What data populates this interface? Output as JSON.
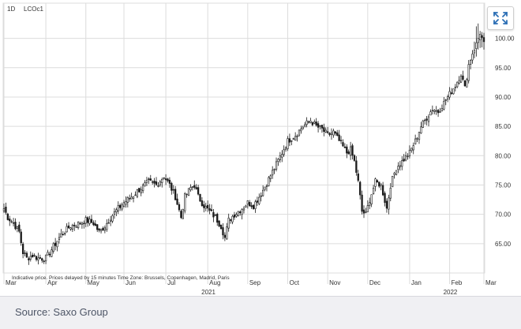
{
  "header": {
    "timeframe": "1D",
    "symbol": "LCOc1"
  },
  "note": "Indicative price. Prices delayed by 15 minutes   Time Zone: Brussels, Copenhagen, Madrid, Paris",
  "footer": {
    "source": "Source: Saxo Group"
  },
  "colors": {
    "candle": "#1a1a1a",
    "grid": "#dcdcdc",
    "accent": "#2c6fb5"
  },
  "icons": {
    "expand": "expand-arrows-icon"
  },
  "chart_data": {
    "type": "candlestick",
    "title": "",
    "xlabel": "",
    "ylabel": "",
    "ylim": [
      60,
      106
    ],
    "y_ticks": [
      65,
      70,
      75,
      80,
      85,
      90,
      95,
      100
    ],
    "y_tick_labels": [
      "65.00",
      "70.00",
      "75.00",
      "80.00",
      "85.00",
      "90.00",
      "95.00",
      "100.00"
    ],
    "x_ticks": [
      {
        "label": "Mar",
        "sub": "",
        "idx": 0
      },
      {
        "label": "Apr",
        "sub": "",
        "idx": 22
      },
      {
        "label": "May",
        "sub": "",
        "idx": 43
      },
      {
        "label": "Jun",
        "sub": "",
        "idx": 63
      },
      {
        "label": "Jul",
        "sub": "",
        "idx": 85
      },
      {
        "label": "Aug",
        "sub": "2021",
        "idx": 107
      },
      {
        "label": "Sep",
        "sub": "",
        "idx": 128
      },
      {
        "label": "Oct",
        "sub": "",
        "idx": 149
      },
      {
        "label": "Nov",
        "sub": "",
        "idx": 170
      },
      {
        "label": "Dec",
        "sub": "",
        "idx": 191
      },
      {
        "label": "Jan",
        "sub": "",
        "idx": 213
      },
      {
        "label": "Feb",
        "sub": "2022",
        "idx": 234
      },
      {
        "label": "Mar",
        "sub": "",
        "idx": 254
      }
    ],
    "anchors": [
      [
        0,
        71
      ],
      [
        2,
        69.5
      ],
      [
        5,
        68.5
      ],
      [
        8,
        67
      ],
      [
        10,
        63.5
      ],
      [
        12,
        62.5
      ],
      [
        15,
        63
      ],
      [
        18,
        62.5
      ],
      [
        22,
        62.5
      ],
      [
        25,
        64
      ],
      [
        28,
        65.5
      ],
      [
        30,
        66.5
      ],
      [
        35,
        68
      ],
      [
        40,
        68.5
      ],
      [
        43,
        69
      ],
      [
        47,
        68.5
      ],
      [
        50,
        67
      ],
      [
        53,
        68
      ],
      [
        56,
        69.5
      ],
      [
        60,
        71
      ],
      [
        63,
        72
      ],
      [
        67,
        73
      ],
      [
        72,
        74.5
      ],
      [
        76,
        75.5
      ],
      [
        80,
        75
      ],
      [
        84,
        76.5
      ],
      [
        87,
        75
      ],
      [
        90,
        73
      ],
      [
        93,
        69.5
      ],
      [
        95,
        73
      ],
      [
        98,
        74.5
      ],
      [
        100,
        75
      ],
      [
        102,
        73
      ],
      [
        105,
        71.5
      ],
      [
        108,
        70.5
      ],
      [
        111,
        69.5
      ],
      [
        114,
        68
      ],
      [
        116,
        66
      ],
      [
        118,
        69
      ],
      [
        121,
        70
      ],
      [
        125,
        71
      ],
      [
        128,
        72
      ],
      [
        131,
        71.5
      ],
      [
        135,
        73.5
      ],
      [
        139,
        76
      ],
      [
        143,
        78.5
      ],
      [
        146,
        80.5
      ],
      [
        149,
        82.5
      ],
      [
        153,
        83.5
      ],
      [
        157,
        85
      ],
      [
        161,
        86
      ],
      [
        164,
        85
      ],
      [
        167,
        84.5
      ],
      [
        170,
        83.5
      ],
      [
        173,
        84
      ],
      [
        176,
        82.5
      ],
      [
        180,
        80.5
      ],
      [
        182,
        81
      ],
      [
        184,
        79
      ],
      [
        186,
        75.5
      ],
      [
        188,
        70.5
      ],
      [
        190,
        70
      ],
      [
        192,
        72.5
      ],
      [
        195,
        75.5
      ],
      [
        198,
        75
      ],
      [
        201,
        71
      ],
      [
        203,
        75
      ],
      [
        206,
        78
      ],
      [
        209,
        79
      ],
      [
        213,
        80.5
      ],
      [
        216,
        82.5
      ],
      [
        219,
        85
      ],
      [
        222,
        86.5
      ],
      [
        225,
        88
      ],
      [
        228,
        87.5
      ],
      [
        231,
        89
      ],
      [
        234,
        90.5
      ],
      [
        237,
        92
      ],
      [
        240,
        94
      ],
      [
        242,
        91.5
      ],
      [
        244,
        95.5
      ],
      [
        246,
        97.5
      ],
      [
        248,
        99
      ],
      [
        250,
        101
      ],
      [
        252,
        99
      ]
    ],
    "n_days": 253,
    "seed": 7
  }
}
